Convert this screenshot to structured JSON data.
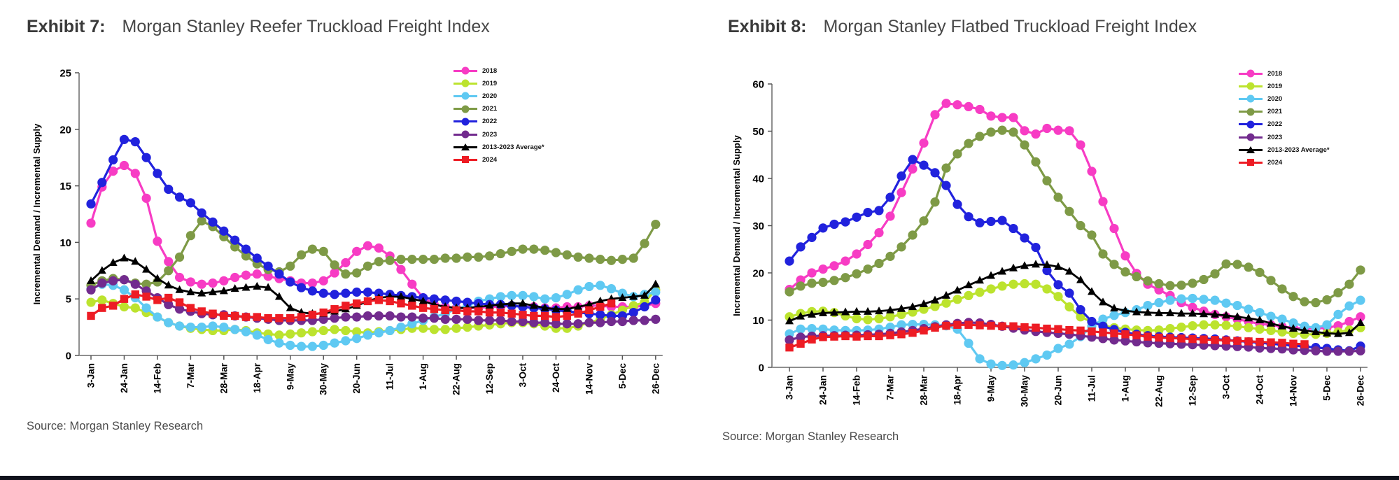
{
  "page": {
    "bottom_bar_color": "#10121c"
  },
  "chart_data": [
    {
      "type": "line",
      "exhibit_label": "Exhibit 7:",
      "title": "Morgan Stanley Reefer Truckload Freight Index",
      "source": "Source: Morgan Stanley Research",
      "ylabel": "Incremental Demand / Incremental Supply",
      "ylim": [
        0,
        25
      ],
      "yticks": [
        0,
        5,
        10,
        15,
        20,
        25
      ],
      "x_tick_labels": [
        "3-Jan",
        "24-Jan",
        "14-Feb",
        "7-Mar",
        "28-Mar",
        "18-Apr",
        "9-May",
        "30-May",
        "20-Jun",
        "11-Jul",
        "1-Aug",
        "22-Aug",
        "12-Sep",
        "3-Oct",
        "24-Oct",
        "14-Nov",
        "5-Dec",
        "26-Dec"
      ],
      "x_tick_interval": 3,
      "n_points": 52,
      "grid": false,
      "legend_position": "upper-right-inside",
      "series": [
        {
          "name": "2018",
          "color": "#f73cc4",
          "marker": "circle",
          "values": [
            11.7,
            14.9,
            16.3,
            16.8,
            16.1,
            13.9,
            10.1,
            8.3,
            6.9,
            6.5,
            6.3,
            6.4,
            6.6,
            6.9,
            7.1,
            7.2,
            7.0,
            6.8,
            6.6,
            6.4,
            6.4,
            6.6,
            7.3,
            8.2,
            9.2,
            9.7,
            9.5,
            8.8,
            7.6,
            6.3,
            5.1,
            4.5,
            4.3,
            4.2,
            4.2,
            4.2,
            4.3,
            4.3,
            4.4,
            4.3,
            4.3,
            4.2,
            4.2,
            4.3,
            4.3,
            4.4,
            4.4,
            4.3,
            4.3,
            4.3,
            4.4,
            4.6
          ]
        },
        {
          "name": "2019",
          "color": "#bce32e",
          "marker": "circle",
          "values": [
            4.7,
            4.9,
            4.6,
            4.3,
            4.2,
            3.8,
            3.4,
            2.9,
            2.6,
            2.4,
            2.3,
            2.2,
            2.2,
            2.3,
            2.2,
            2.0,
            1.9,
            1.8,
            1.9,
            2.0,
            2.1,
            2.2,
            2.3,
            2.2,
            2.1,
            2.0,
            2.1,
            2.2,
            2.3,
            2.4,
            2.4,
            2.3,
            2.3,
            2.4,
            2.5,
            2.6,
            2.7,
            2.8,
            2.9,
            2.9,
            2.8,
            2.6,
            2.4,
            2.4,
            2.6,
            2.9,
            3.2,
            3.6,
            4.0,
            4.4,
            4.7,
            5.8
          ]
        },
        {
          "name": "2020",
          "color": "#5fc9f2",
          "marker": "circle",
          "values": [
            5.9,
            6.3,
            6.2,
            5.8,
            5.1,
            4.2,
            3.4,
            2.9,
            2.6,
            2.5,
            2.5,
            2.6,
            2.5,
            2.3,
            2.1,
            1.8,
            1.4,
            1.1,
            0.9,
            0.8,
            0.8,
            0.9,
            1.1,
            1.3,
            1.5,
            1.8,
            2.0,
            2.2,
            2.5,
            2.8,
            3.1,
            3.4,
            3.7,
            4.1,
            4.4,
            4.8,
            5.0,
            5.2,
            5.3,
            5.3,
            5.2,
            5.0,
            5.1,
            5.4,
            5.8,
            6.1,
            6.2,
            5.9,
            5.5,
            5.2,
            5.4,
            5.6
          ]
        },
        {
          "name": "2021",
          "color": "#7e9a46",
          "marker": "circle",
          "values": [
            6.2,
            6.6,
            6.8,
            6.7,
            6.4,
            6.3,
            6.5,
            7.5,
            8.7,
            10.6,
            11.9,
            11.4,
            10.5,
            9.6,
            8.8,
            8.1,
            7.6,
            7.4,
            7.9,
            8.9,
            9.4,
            9.2,
            8.0,
            7.2,
            7.3,
            7.9,
            8.3,
            8.4,
            8.5,
            8.5,
            8.5,
            8.5,
            8.6,
            8.6,
            8.7,
            8.7,
            8.8,
            9.0,
            9.2,
            9.4,
            9.4,
            9.3,
            9.1,
            8.9,
            8.7,
            8.6,
            8.5,
            8.4,
            8.5,
            8.6,
            9.9,
            11.6
          ]
        },
        {
          "name": "2022",
          "color": "#2122dd",
          "marker": "circle",
          "values": [
            13.4,
            15.3,
            17.3,
            19.1,
            18.9,
            17.5,
            16.1,
            14.7,
            14.0,
            13.5,
            12.6,
            11.8,
            11.0,
            10.2,
            9.4,
            8.6,
            7.9,
            7.2,
            6.5,
            6.0,
            5.7,
            5.5,
            5.4,
            5.5,
            5.6,
            5.6,
            5.5,
            5.4,
            5.3,
            5.2,
            5.1,
            5.0,
            4.9,
            4.8,
            4.7,
            4.6,
            4.5,
            4.5,
            4.4,
            4.3,
            4.2,
            4.1,
            4.0,
            3.9,
            3.8,
            3.7,
            3.6,
            3.5,
            3.5,
            3.8,
            4.3,
            4.9
          ]
        },
        {
          "name": "2023",
          "color": "#722b8e",
          "marker": "circle",
          "values": [
            5.8,
            6.4,
            6.6,
            6.7,
            6.3,
            5.7,
            5.1,
            4.5,
            4.1,
            3.9,
            3.7,
            3.6,
            3.6,
            3.5,
            3.4,
            3.3,
            3.2,
            3.1,
            3.1,
            3.1,
            3.1,
            3.2,
            3.3,
            3.4,
            3.4,
            3.5,
            3.5,
            3.5,
            3.4,
            3.4,
            3.3,
            3.3,
            3.2,
            3.2,
            3.2,
            3.1,
            3.1,
            3.1,
            3.0,
            3.0,
            2.9,
            2.9,
            2.8,
            2.8,
            2.8,
            2.9,
            2.9,
            3.0,
            3.0,
            3.1,
            3.1,
            3.2
          ]
        },
        {
          "name": "2013-2023 Average*",
          "color": "#000000",
          "marker": "triangle",
          "values": [
            6.6,
            7.5,
            8.2,
            8.6,
            8.3,
            7.6,
            6.8,
            6.2,
            5.8,
            5.6,
            5.5,
            5.6,
            5.7,
            5.9,
            6.0,
            6.1,
            6.0,
            5.2,
            4.2,
            3.8,
            3.7,
            3.7,
            3.9,
            4.1,
            4.4,
            4.8,
            5.1,
            5.2,
            5.2,
            5.0,
            4.8,
            4.5,
            4.3,
            4.2,
            4.2,
            4.3,
            4.4,
            4.5,
            4.6,
            4.6,
            4.4,
            4.2,
            4.1,
            4.1,
            4.3,
            4.5,
            4.8,
            5.0,
            5.1,
            5.2,
            5.3,
            6.3
          ]
        },
        {
          "name": "2024",
          "color": "#ed1c24",
          "marker": "square",
          "values": [
            3.5,
            4.2,
            4.4,
            5.0,
            5.4,
            5.2,
            4.9,
            5.1,
            4.7,
            4.2,
            3.9,
            3.7,
            3.5,
            3.5,
            3.4,
            3.4,
            3.3,
            3.3,
            3.3,
            3.4,
            3.6,
            3.8,
            4.1,
            4.4,
            4.6,
            4.8,
            4.9,
            4.8,
            4.6,
            4.4,
            4.2,
            4.1,
            4.0,
            4.0,
            3.9,
            3.9,
            3.8,
            3.8,
            3.7,
            3.6,
            3.5,
            3.5,
            3.4,
            3.5,
            3.7,
            4.0,
            4.3,
            4.6,
            null,
            null,
            null,
            null
          ]
        }
      ]
    },
    {
      "type": "line",
      "exhibit_label": "Exhibit 8:",
      "title": "Morgan Stanley Flatbed Truckload Freight Index",
      "source": "Source: Morgan Stanley Research",
      "ylabel": "Incremental Demand / Incremental Supply",
      "ylim": [
        0,
        60
      ],
      "yticks": [
        0,
        10,
        20,
        30,
        40,
        50,
        60
      ],
      "x_tick_labels": [
        "3-Jan",
        "24-Jan",
        "14-Feb",
        "7-Mar",
        "28-Mar",
        "18-Apr",
        "9-May",
        "30-May",
        "20-Jun",
        "11-Jul",
        "1-Aug",
        "22-Aug",
        "12-Sep",
        "3-Oct",
        "24-Oct",
        "14-Nov",
        "5-Dec",
        "26-Dec"
      ],
      "x_tick_interval": 3,
      "n_points": 52,
      "grid": false,
      "legend_position": "upper-right-inside",
      "series": [
        {
          "name": "2018",
          "color": "#f73cc4",
          "marker": "circle",
          "values": [
            16.5,
            18.5,
            20.0,
            20.8,
            21.5,
            22.5,
            24.0,
            26.0,
            28.5,
            32.0,
            37.0,
            42.0,
            47.5,
            53.5,
            55.9,
            55.6,
            55.2,
            54.6,
            53.2,
            52.9,
            52.9,
            50.1,
            49.4,
            50.6,
            50.2,
            50.1,
            47.1,
            41.5,
            35.1,
            29.4,
            23.6,
            19.9,
            17.6,
            16.4,
            15.2,
            13.7,
            12.7,
            11.9,
            11.2,
            10.7,
            10.2,
            9.7,
            9.2,
            9.0,
            8.6,
            8.4,
            8.2,
            8.2,
            8.4,
            8.8,
            9.7,
            10.7
          ]
        },
        {
          "name": "2019",
          "color": "#bce32e",
          "marker": "circle",
          "values": [
            10.7,
            11.4,
            11.8,
            11.9,
            11.6,
            10.9,
            10.3,
            10.1,
            10.3,
            10.7,
            11.2,
            11.7,
            12.3,
            12.9,
            13.6,
            14.4,
            15.2,
            15.9,
            16.6,
            17.2,
            17.6,
            17.7,
            17.6,
            16.6,
            15.0,
            12.8,
            10.7,
            9.6,
            8.9,
            8.4,
            8.1,
            7.9,
            7.8,
            7.9,
            8.2,
            8.5,
            8.8,
            9.0,
            9.0,
            8.9,
            8.7,
            8.4,
            8.1,
            7.8,
            7.5,
            7.2,
            7.0,
            7.0,
            7.2,
            7.5,
            7.9,
            8.4
          ]
        },
        {
          "name": "2020",
          "color": "#5fc9f2",
          "marker": "circle",
          "values": [
            7.1,
            8.1,
            8.2,
            8.1,
            7.9,
            7.8,
            7.8,
            7.9,
            8.1,
            8.5,
            9.0,
            9.1,
            9.1,
            9.0,
            8.8,
            8.1,
            5.1,
            1.8,
            0.7,
            0.4,
            0.5,
            1.0,
            1.8,
            2.6,
            4.0,
            4.9,
            6.5,
            8.7,
            10.2,
            11.0,
            11.6,
            12.2,
            13.1,
            13.7,
            14.2,
            14.5,
            14.6,
            14.4,
            14.2,
            13.6,
            13.1,
            12.3,
            11.6,
            10.8,
            10.2,
            9.4,
            8.7,
            8.4,
            9.0,
            11.2,
            13.0,
            14.2
          ]
        },
        {
          "name": "2021",
          "color": "#7e9a46",
          "marker": "circle",
          "values": [
            16.0,
            17.2,
            17.8,
            18.0,
            18.4,
            19.0,
            19.8,
            20.8,
            22.0,
            23.5,
            25.5,
            28.0,
            31.0,
            35.0,
            42.2,
            45.2,
            47.4,
            48.9,
            49.8,
            50.2,
            49.8,
            47.1,
            43.5,
            39.5,
            36.0,
            33.0,
            30.0,
            28.0,
            24.0,
            21.8,
            20.2,
            19.2,
            18.3,
            17.7,
            17.3,
            17.4,
            17.8,
            18.6,
            19.8,
            21.9,
            21.8,
            21.2,
            20.1,
            18.4,
            16.6,
            15.0,
            13.9,
            13.7,
            14.3,
            15.8,
            17.6,
            20.6
          ]
        },
        {
          "name": "2022",
          "color": "#2122dd",
          "marker": "circle",
          "values": [
            22.5,
            25.5,
            27.5,
            29.5,
            30.3,
            30.8,
            31.8,
            32.8,
            33.2,
            36.0,
            40.5,
            44.0,
            42.8,
            41.2,
            38.5,
            34.5,
            31.9,
            30.6,
            30.9,
            31.1,
            29.4,
            27.4,
            25.4,
            20.5,
            17.5,
            15.7,
            12.2,
            9.7,
            8.7,
            8.0,
            7.4,
            7.0,
            6.7,
            6.5,
            6.4,
            6.3,
            6.2,
            6.1,
            6.0,
            5.8,
            5.6,
            5.4,
            5.2,
            5.0,
            4.8,
            4.6,
            4.4,
            4.2,
            4.0,
            3.7,
            3.5,
            4.5
          ]
        },
        {
          "name": "2023",
          "color": "#722b8e",
          "marker": "circle",
          "values": [
            5.8,
            6.4,
            6.6,
            6.7,
            6.7,
            6.8,
            6.8,
            6.9,
            7.0,
            7.2,
            7.5,
            7.8,
            8.2,
            8.6,
            9.0,
            9.3,
            9.5,
            9.4,
            9.1,
            8.7,
            8.3,
            7.9,
            7.6,
            7.4,
            7.2,
            7.0,
            6.7,
            6.4,
            6.1,
            5.8,
            5.6,
            5.4,
            5.2,
            5.1,
            5.0,
            4.9,
            4.8,
            4.7,
            4.6,
            4.5,
            4.4,
            4.3,
            4.1,
            4.0,
            3.9,
            3.7,
            3.6,
            3.5,
            3.4,
            3.4,
            3.4,
            3.5
          ]
        },
        {
          "name": "2013-2023 Average*",
          "color": "#000000",
          "marker": "triangle",
          "values": [
            9.8,
            10.8,
            11.2,
            11.5,
            11.6,
            11.7,
            11.8,
            11.8,
            11.9,
            12.1,
            12.4,
            12.8,
            13.4,
            14.2,
            15.2,
            16.3,
            17.4,
            18.4,
            19.4,
            20.3,
            21.0,
            21.5,
            21.8,
            21.7,
            21.3,
            20.3,
            18.5,
            16.0,
            13.8,
            12.5,
            12.0,
            11.7,
            11.6,
            11.5,
            11.5,
            11.4,
            11.4,
            11.3,
            11.2,
            11.0,
            10.7,
            10.4,
            10.0,
            9.3,
            8.7,
            8.2,
            7.8,
            7.5,
            7.2,
            7.1,
            7.3,
            9.4
          ]
        },
        {
          "name": "2024",
          "color": "#ed1c24",
          "marker": "square",
          "values": [
            4.2,
            5.0,
            5.9,
            6.4,
            6.5,
            6.6,
            6.5,
            6.6,
            6.6,
            6.8,
            7.0,
            7.3,
            7.8,
            8.4,
            8.8,
            9.0,
            9.0,
            8.9,
            8.8,
            8.7,
            8.7,
            8.5,
            8.4,
            8.2,
            8.1,
            7.9,
            7.8,
            7.6,
            7.4,
            7.2,
            7.0,
            6.8,
            6.5,
            6.3,
            6.2,
            6.1,
            6.0,
            5.9,
            5.8,
            5.7,
            5.6,
            5.5,
            5.4,
            5.3,
            5.2,
            5.0,
            4.9,
            null,
            null,
            null,
            null,
            null
          ]
        }
      ]
    }
  ]
}
